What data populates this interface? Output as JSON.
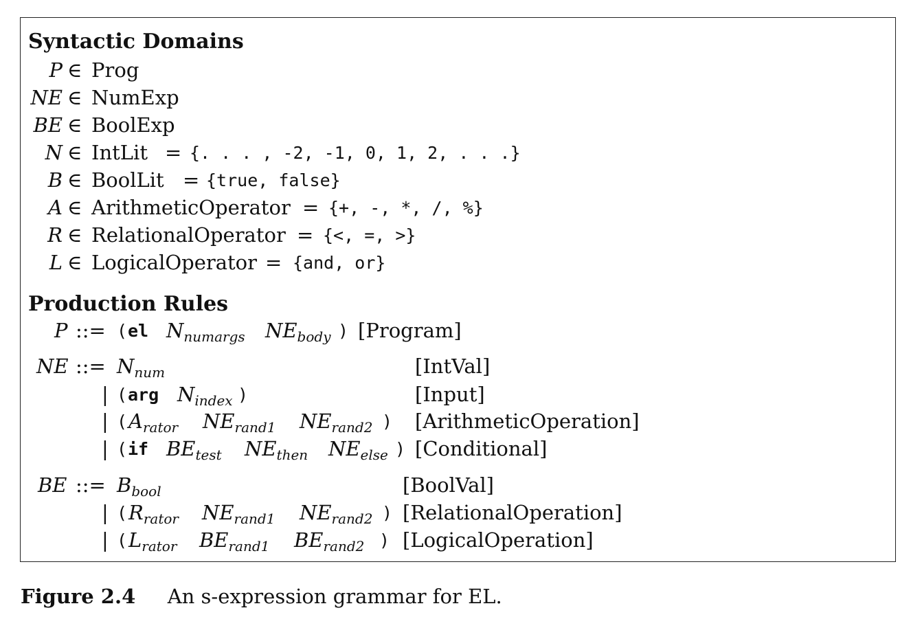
{
  "figure": {
    "syntactic_heading": "Syntactic Domains",
    "domains": [
      {
        "var": "P",
        "elem": "∈",
        "name": "Prog"
      },
      {
        "var": "NE",
        "elem": "∈",
        "name": "NumExp"
      },
      {
        "var": "BE",
        "elem": "∈",
        "name": "BoolExp"
      },
      {
        "var": "N",
        "elem": "∈",
        "name": "IntLit",
        "eq": "=",
        "set": "{. . . , -2, -1, 0, 1, 2, . . .}"
      },
      {
        "var": "B",
        "elem": "∈",
        "name": "BoolLit",
        "eq": "=",
        "set": "{true, false}"
      },
      {
        "var": "A",
        "elem": "∈",
        "name": "ArithmeticOperator",
        "eq": "=",
        "set": "{+, -, *, /, %}"
      },
      {
        "var": "R",
        "elem": "∈",
        "name": "RelationalOperator",
        "eq": "=",
        "set": "{<, =, >}"
      },
      {
        "var": "L",
        "elem": "∈",
        "name": "LogicalOperator",
        "eq": "=",
        "set": "{and, or}"
      }
    ],
    "production_heading": "Production Rules",
    "rule_prog": {
      "lhs": "P",
      "def": "::=",
      "open": "(",
      "kw": "el",
      "n": "N",
      "n_sub": "numargs",
      "ne": "NE",
      "ne_sub": "body",
      "close": ")",
      "tag": "[Program]"
    },
    "ne_rules": {
      "lhs": "NE",
      "def": "::=",
      "bar": "|",
      "r1": {
        "v": "N",
        "sub": "num",
        "tag": "[IntVal]"
      },
      "r2": {
        "open": "(",
        "kw": "arg",
        "v": "N",
        "sub": "index",
        "close": ")",
        "tag": "[Input]"
      },
      "r3": {
        "open": "(",
        "a": "A",
        "a_sub": "rator",
        "b": "NE",
        "b_sub": "rand1",
        "c": "NE",
        "c_sub": "rand2",
        "close": ")",
        "tag": "[ArithmeticOperation]"
      },
      "r4": {
        "open": "(",
        "kw": "if",
        "a": "BE",
        "a_sub": "test",
        "b": "NE",
        "b_sub": "then",
        "c": "NE",
        "c_sub": "else",
        "close": ")",
        "tag": "[Conditional]"
      }
    },
    "be_rules": {
      "lhs": "BE",
      "def": "::=",
      "bar": "|",
      "r1": {
        "v": "B",
        "sub": "bool",
        "tag": "[BoolVal]"
      },
      "r2": {
        "open": "(",
        "a": "R",
        "a_sub": "rator",
        "b": "NE",
        "b_sub": "rand1",
        "c": "NE",
        "c_sub": "rand2",
        "close": ")",
        "tag": "[RelationalOperation]"
      },
      "r3": {
        "open": "(",
        "a": "L",
        "a_sub": "rator",
        "b": "BE",
        "b_sub": "rand1",
        "c": "BE",
        "c_sub": "rand2",
        "close": ")",
        "tag": "[LogicalOperation]"
      }
    }
  },
  "caption": {
    "label": "Figure 2.4",
    "text": "An s-expression grammar for EL."
  }
}
